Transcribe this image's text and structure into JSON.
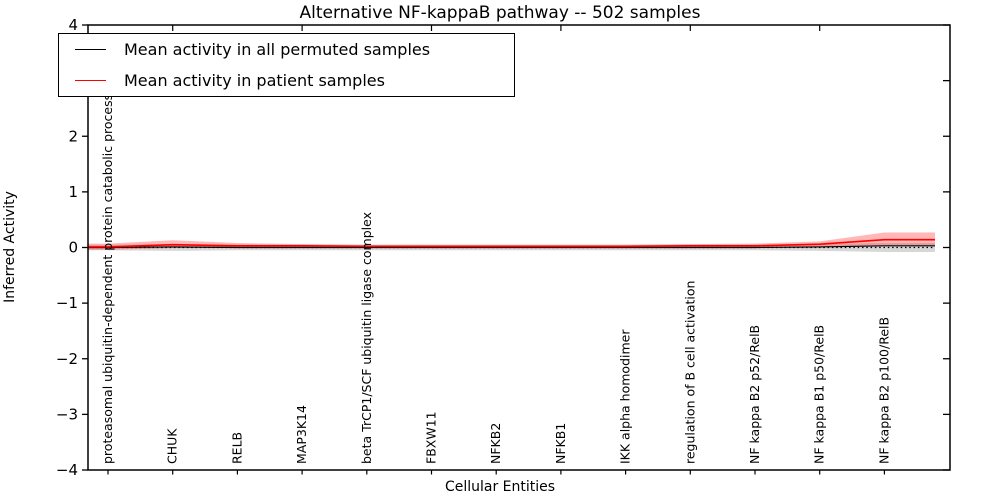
{
  "title": "Alternative NF-kappaB pathway -- 502 samples",
  "axes": {
    "xlabel": "Cellular Entities",
    "ylabel": "Inferred Activity",
    "yticks": [
      {
        "label": "4",
        "value": 4
      },
      {
        "label": "3",
        "value": 3
      },
      {
        "label": "2",
        "value": 2
      },
      {
        "label": "1",
        "value": 1
      },
      {
        "label": "0",
        "value": 0
      },
      {
        "label": "−1",
        "value": -1
      },
      {
        "label": "−2",
        "value": -2
      },
      {
        "label": "−3",
        "value": -3
      },
      {
        "label": "−4",
        "value": -4
      }
    ]
  },
  "legend": {
    "entries": [
      {
        "label": "Mean activity in all permuted samples",
        "color": "#000000"
      },
      {
        "label": "Mean activity in patient samples",
        "color": "#ff0000"
      }
    ]
  },
  "chart_data": {
    "type": "line",
    "title": "Alternative NF-kappaB pathway -- 502 samples",
    "xlabel": "Cellular Entities",
    "ylabel": "Inferred Activity",
    "ylim": [
      -4,
      4
    ],
    "grid": false,
    "legend_position": "upper left",
    "zero_line": {
      "style": "dotted",
      "color": "#000000",
      "y": 0
    },
    "categories": [
      "proteasomal ubiquitin-dependent protein catabolic process",
      "CHUK",
      "RELB",
      "MAP3K14",
      "beta TrCP1/SCF ubiquitin ligase complex",
      "FBXW11",
      "NFKB2",
      "NFKB1",
      "IKK alpha homodimer",
      "regulation of B cell activation",
      "NF kappa B2 p52/RelB",
      "NF kappa B1 p50/RelB",
      "NF kappa B2 p100/RelB"
    ],
    "series": [
      {
        "name": "Mean activity in all permuted samples",
        "color": "#000000",
        "values": [
          0.0,
          0.01,
          0.0,
          0.0,
          0.0,
          0.0,
          0.0,
          0.0,
          0.0,
          0.0,
          0.0,
          0.01,
          0.03
        ]
      },
      {
        "name": "Mean activity in patient samples",
        "color": "#ff0000",
        "values": [
          0.01,
          0.05,
          0.03,
          0.03,
          0.02,
          0.02,
          0.02,
          0.02,
          0.02,
          0.03,
          0.03,
          0.06,
          0.14
        ]
      }
    ],
    "bands": [
      {
        "name": "permuted-std-band",
        "color": "rgba(110,110,110,0.28)",
        "upper": [
          0.05,
          0.06,
          0.05,
          0.05,
          0.05,
          0.05,
          0.05,
          0.05,
          0.05,
          0.05,
          0.05,
          0.06,
          0.08
        ],
        "lower": [
          -0.05,
          -0.06,
          -0.05,
          -0.05,
          -0.05,
          -0.05,
          -0.05,
          -0.05,
          -0.05,
          -0.05,
          -0.05,
          -0.06,
          -0.08
        ]
      },
      {
        "name": "patient-std-band",
        "color": "rgba(255,30,30,0.32)",
        "upper": [
          0.07,
          0.13,
          0.08,
          0.06,
          0.05,
          0.05,
          0.05,
          0.05,
          0.05,
          0.06,
          0.07,
          0.11,
          0.27
        ],
        "lower": [
          -0.04,
          -0.01,
          -0.01,
          0.0,
          0.0,
          0.0,
          0.0,
          0.0,
          0.0,
          0.0,
          0.0,
          0.01,
          0.04
        ]
      }
    ]
  }
}
